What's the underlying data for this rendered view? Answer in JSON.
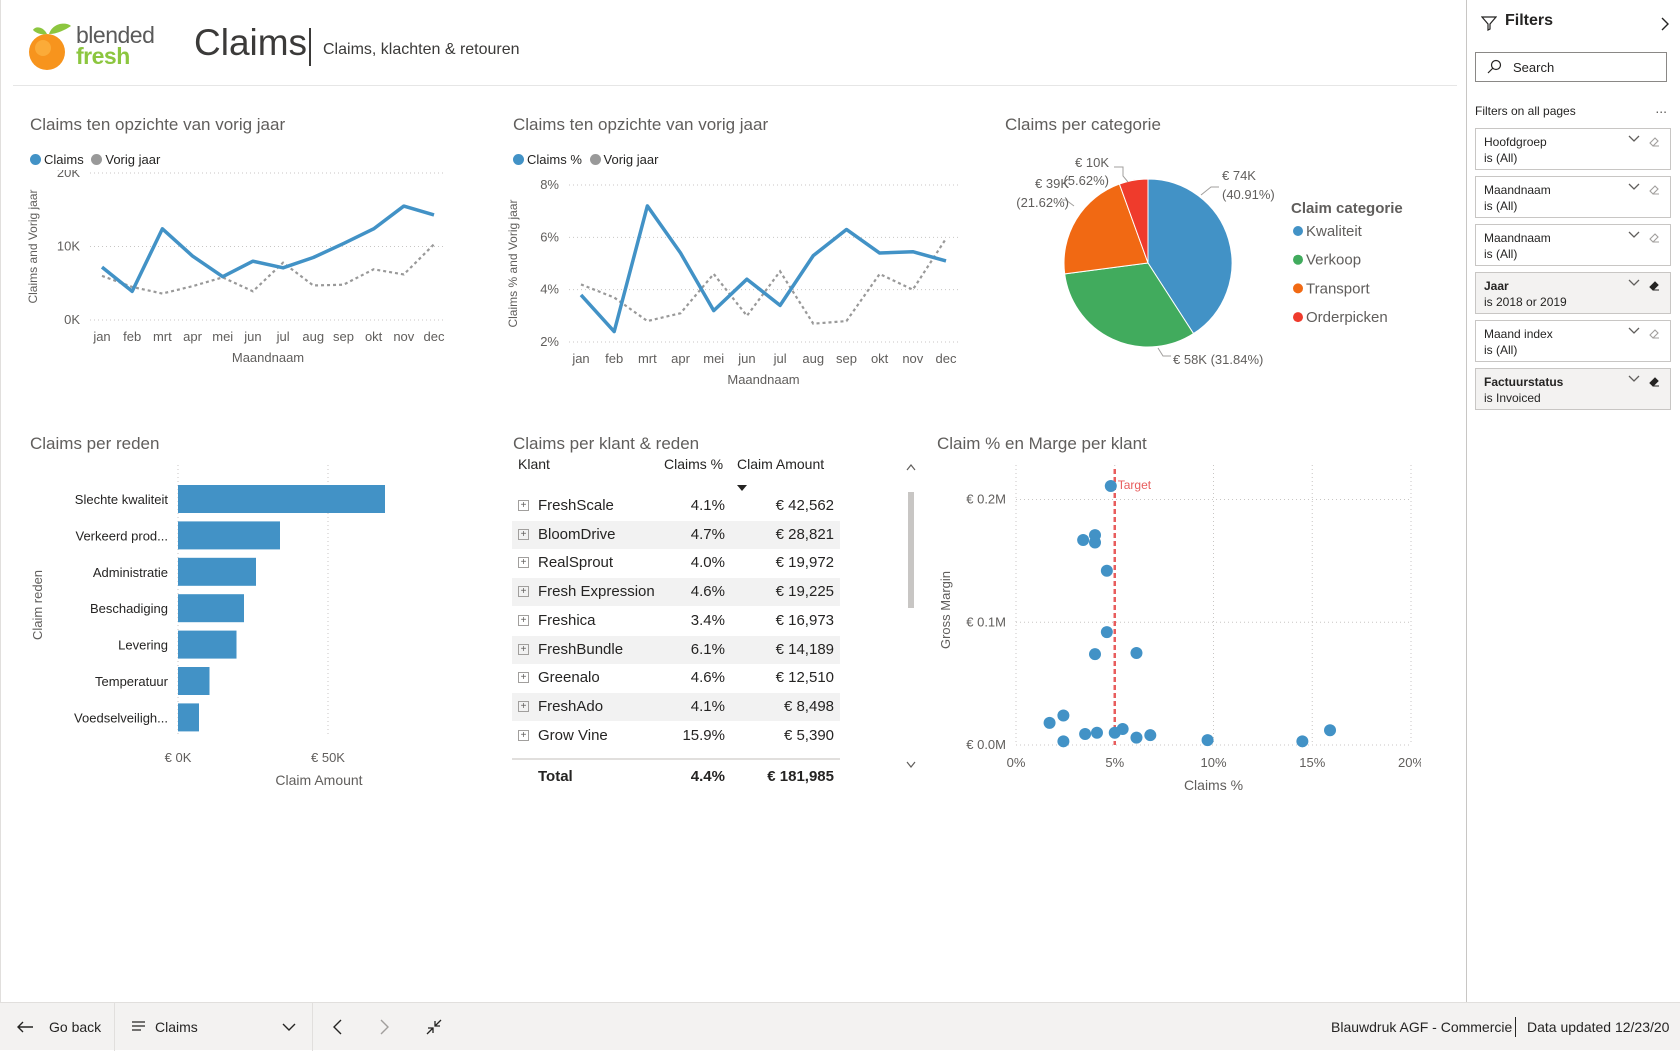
{
  "header": {
    "logo_line1": "blended",
    "logo_line2": "fresh",
    "title": "Claims",
    "subtitle": "Claims, klachten & retouren"
  },
  "visuals": {
    "line1": {
      "title": "Claims ten opzichte van vorig jaar",
      "legend": [
        "Claims",
        "Vorig jaar"
      ],
      "colors": {
        "primary": "#4292c6",
        "secondary": "#999999"
      }
    },
    "line2": {
      "title": "Claims ten opzichte van vorig jaar",
      "legend": [
        "Claims %",
        "Vorig jaar"
      ]
    },
    "pie": {
      "title": "Claims per categorie",
      "legend_title": "Claim categorie",
      "legend": [
        "Kwaliteit",
        "Verkoop",
        "Transport",
        "Orderpicken"
      ],
      "labels": {
        "kwaliteit": "€ 74K",
        "kwaliteit_pct": "(40.91%)",
        "verkoop": "€ 58K (31.84%)",
        "transport": "€ 39K",
        "transport_pct": "(21.62%)",
        "orderpicken": "€ 10K",
        "orderpicken_pct": "(5.62%)"
      },
      "colors": [
        "#4292c6",
        "#41ab5d",
        "#f16913",
        "#ef3b2c"
      ]
    },
    "bar": {
      "title": "Claims per reden"
    },
    "table": {
      "title": "Claims per klant & reden",
      "headers": {
        "klant": "Klant",
        "pct": "Claims %",
        "amt": "Claim Amount"
      },
      "rows": [
        {
          "name": "FreshScale",
          "pct": "4.1%",
          "amt": "€ 42,562"
        },
        {
          "name": "BloomDrive",
          "pct": "4.7%",
          "amt": "€ 28,821"
        },
        {
          "name": "RealSprout",
          "pct": "4.0%",
          "amt": "€ 19,972"
        },
        {
          "name": "Fresh Expression",
          "pct": "4.6%",
          "amt": "€ 19,225"
        },
        {
          "name": "Freshica",
          "pct": "3.4%",
          "amt": "€ 16,973"
        },
        {
          "name": "FreshBundle",
          "pct": "6.1%",
          "amt": "€ 14,189"
        },
        {
          "name": "Greenalo",
          "pct": "4.6%",
          "amt": "€ 12,510"
        },
        {
          "name": "FreshAdo",
          "pct": "4.1%",
          "amt": "€ 8,498"
        },
        {
          "name": "Grow Vine",
          "pct": "15.9%",
          "amt": "€ 5,390"
        }
      ],
      "total": {
        "name": "Total",
        "pct": "4.4%",
        "amt": "€ 181,985"
      }
    },
    "scatter": {
      "title": "Claim % en Marge per klant",
      "target_label": "Target"
    }
  },
  "chart_data": [
    {
      "type": "line",
      "title": "Claims ten opzichte van vorig jaar",
      "xlabel": "Maandnaam",
      "ylabel": "Claims and Vorig jaar",
      "x": [
        "jan",
        "feb",
        "mrt",
        "apr",
        "mei",
        "jun",
        "jul",
        "aug",
        "sep",
        "okt",
        "nov",
        "dec"
      ],
      "y_ticks": [
        "0K",
        "10K",
        "20K"
      ],
      "ylim": [
        0,
        20000
      ],
      "series": [
        {
          "name": "Claims",
          "values": [
            7200,
            3900,
            12400,
            8700,
            5900,
            8000,
            7100,
            8500,
            10400,
            12400,
            15500,
            14300
          ]
        },
        {
          "name": "Vorig jaar",
          "values": [
            6000,
            4500,
            3600,
            4600,
            5800,
            3900,
            7800,
            4700,
            4800,
            6900,
            6200,
            10300
          ]
        }
      ]
    },
    {
      "type": "line",
      "title": "Claims ten opzichte van vorig jaar",
      "xlabel": "Maandnaam",
      "ylabel": "Claims % and Vorig jaar",
      "x": [
        "jan",
        "feb",
        "mrt",
        "apr",
        "mei",
        "jun",
        "jul",
        "aug",
        "sep",
        "okt",
        "nov",
        "dec"
      ],
      "y_ticks": [
        "2%",
        "4%",
        "6%",
        "8%"
      ],
      "ylim": [
        2,
        8
      ],
      "series": [
        {
          "name": "Claims %",
          "values": [
            3.8,
            2.4,
            7.2,
            5.4,
            3.2,
            4.4,
            3.4,
            5.3,
            6.3,
            5.4,
            5.45,
            5.1
          ]
        },
        {
          "name": "Vorig jaar",
          "values": [
            4.2,
            3.7,
            2.8,
            3.1,
            4.6,
            3.0,
            4.7,
            2.7,
            2.8,
            4.6,
            4.0,
            5.95
          ]
        }
      ]
    },
    {
      "type": "pie",
      "title": "Claims per categorie",
      "categories": [
        "Kwaliteit",
        "Verkoop",
        "Transport",
        "Orderpicken"
      ],
      "values": [
        74000,
        58000,
        39000,
        10000
      ],
      "percentages": [
        40.91,
        31.84,
        21.62,
        5.62
      ]
    },
    {
      "type": "bar",
      "title": "Claims per reden",
      "xlabel": "Claim Amount",
      "ylabel": "Claim reden",
      "categories": [
        "Slechte kwaliteit",
        "Verkeerd prod...",
        "Administratie",
        "Beschadiging",
        "Levering",
        "Temperatuur",
        "Voedselveiligh..."
      ],
      "values": [
        69000,
        34000,
        26000,
        22000,
        19500,
        10500,
        7000
      ],
      "x_ticks": [
        "€ 0K",
        "€ 50K"
      ],
      "xlim": [
        0,
        80000
      ]
    },
    {
      "type": "scatter",
      "title": "Claim % en Marge per klant",
      "xlabel": "Claims %",
      "ylabel": "Gross Margin",
      "x_ticks": [
        "0%",
        "5%",
        "10%",
        "15%",
        "20%"
      ],
      "y_ticks": [
        "€ 0.0M",
        "€ 0.1M",
        "€ 0.2M"
      ],
      "xlim": [
        0,
        20
      ],
      "ylim": [
        0,
        0.22
      ],
      "target_x": 5,
      "points": [
        [
          4.8,
          0.211
        ],
        [
          4.0,
          0.171
        ],
        [
          3.4,
          0.167
        ],
        [
          4.0,
          0.165
        ],
        [
          4.6,
          0.142
        ],
        [
          4.6,
          0.092
        ],
        [
          4.0,
          0.074
        ],
        [
          6.1,
          0.075
        ],
        [
          1.7,
          0.018
        ],
        [
          2.4,
          0.024
        ],
        [
          2.4,
          0.003
        ],
        [
          3.5,
          0.009
        ],
        [
          4.1,
          0.01
        ],
        [
          5.0,
          0.01
        ],
        [
          5.4,
          0.013
        ],
        [
          6.1,
          0.006
        ],
        [
          6.8,
          0.008
        ],
        [
          9.7,
          0.004
        ],
        [
          14.5,
          0.003
        ],
        [
          15.9,
          0.012
        ]
      ]
    }
  ],
  "filters": {
    "title": "Filters",
    "search_placeholder": "Search",
    "section": "Filters on all pages",
    "more": "...",
    "cards": [
      {
        "name": "Hoofdgroep",
        "value": "is (All)"
      },
      {
        "name": "Maandnaam",
        "value": "is (All)"
      },
      {
        "name": "Maandnaam",
        "value": "is (All)"
      },
      {
        "name": "Jaar",
        "value": "is 2018 or 2019"
      },
      {
        "name": "Maand index",
        "value": "is (All)"
      },
      {
        "name": "Factuurstatus",
        "value": "is Invoiced"
      }
    ]
  },
  "footer": {
    "go_back": "Go back",
    "page_name": "Claims",
    "report_name": "Blauwdruk AGF - Commercie",
    "data_updated": "Data updated 12/23/20"
  }
}
